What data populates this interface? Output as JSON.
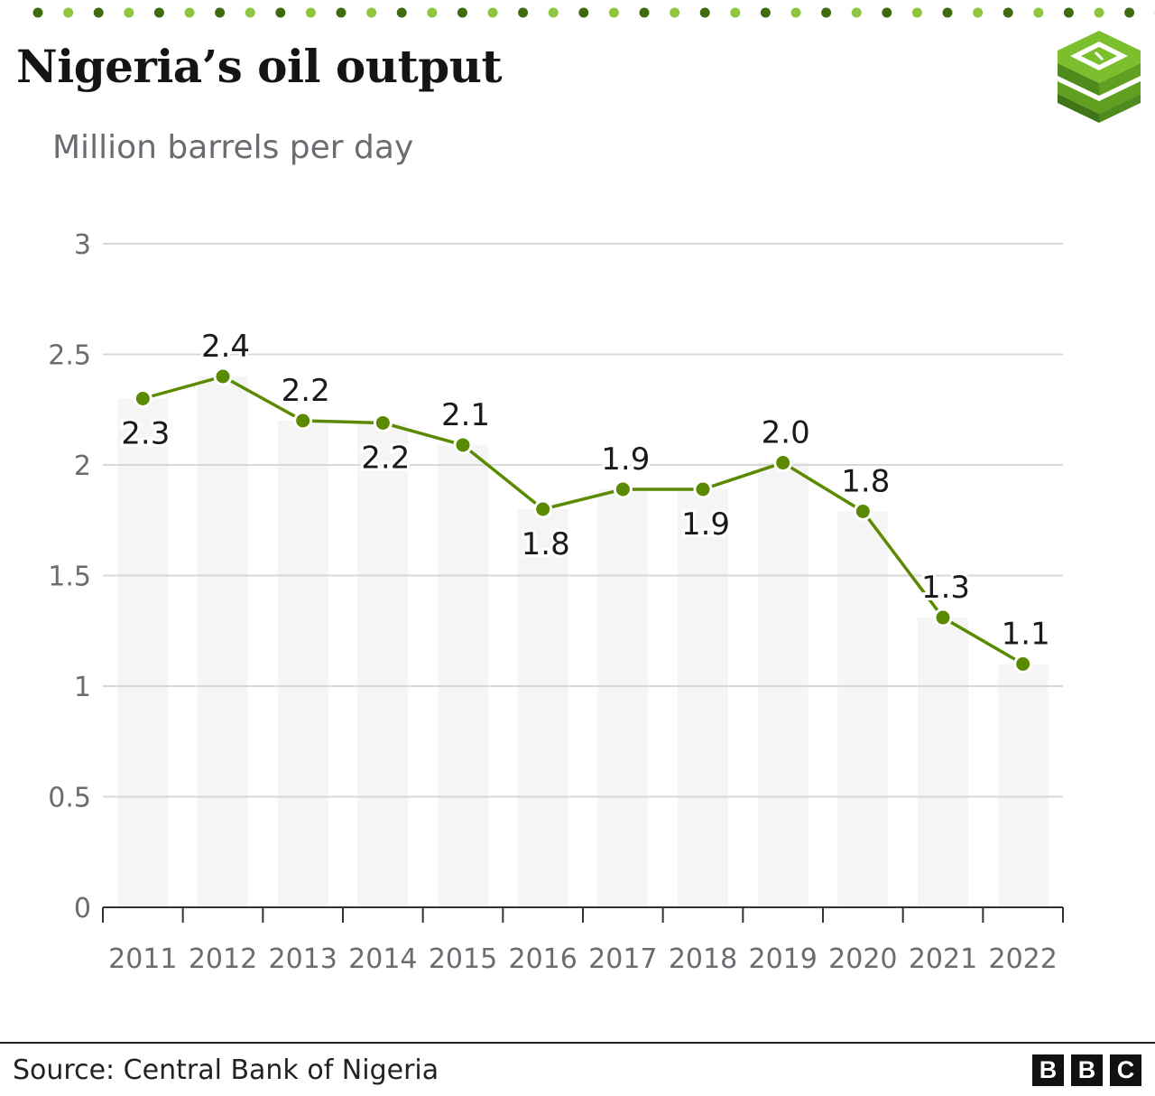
{
  "header": {
    "title": "Nigeria’s oil output",
    "subtitle": "Million barrels per day"
  },
  "footer": {
    "source": "Source: Central Bank of Nigeria",
    "brand_letters": [
      "B",
      "B",
      "C"
    ]
  },
  "colors": {
    "line": "#5a8a00",
    "bars": "#f5f5f5",
    "grid": "#d8d8d8",
    "dot_dark": "#3f6a10",
    "dot_light": "#8ec63f"
  },
  "chart_data": {
    "type": "line",
    "title": "Nigeria’s oil output",
    "subtitle": "Million barrels per day",
    "xlabel": "",
    "ylabel": "",
    "categories": [
      "2011",
      "2012",
      "2013",
      "2014",
      "2015",
      "2016",
      "2017",
      "2018",
      "2019",
      "2020",
      "2021",
      "2022"
    ],
    "series": [
      {
        "values": [
          2.3,
          2.4,
          2.2,
          2.19,
          2.09,
          1.8,
          1.89,
          1.89,
          2.01,
          1.79,
          1.31,
          1.1
        ],
        "labels": [
          "2.3",
          "2.4",
          "2.2",
          "2.2",
          "2.1",
          "1.8",
          "1.9",
          "1.9",
          "2.0",
          "1.8",
          "1.3",
          "1.1"
        ],
        "label_positions": [
          "below",
          "above",
          "above",
          "below",
          "above",
          "below",
          "above",
          "below",
          "above",
          "above",
          "above",
          "above"
        ]
      }
    ],
    "background_bars": true,
    "ylim": [
      0,
      3
    ],
    "yticks": [
      0,
      0.5,
      1,
      1.5,
      2,
      2.5,
      3
    ],
    "ytick_labels": [
      "0",
      "0.5",
      "1",
      "1.5",
      "2",
      "2.5",
      "3"
    ],
    "grid": true,
    "legend": "none"
  }
}
